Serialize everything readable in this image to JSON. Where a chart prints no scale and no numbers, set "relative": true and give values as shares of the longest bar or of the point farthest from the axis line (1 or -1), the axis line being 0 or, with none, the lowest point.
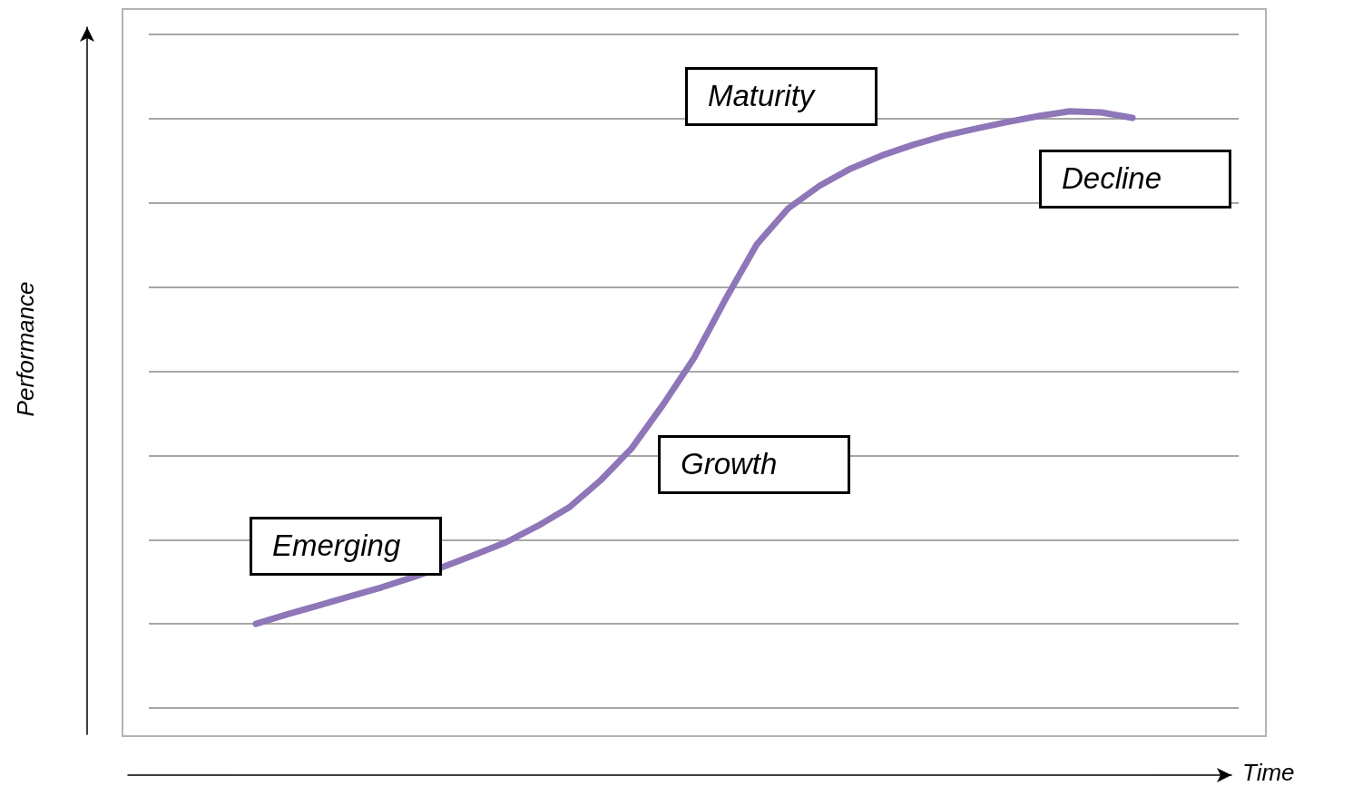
{
  "chart_data": {
    "type": "line",
    "relative": true,
    "xlabel": "Time",
    "grid": true,
    "marker": "none",
    "line_style": "solid",
    "categories": [
      null,
      null,
      null,
      null,
      null,
      null,
      null,
      null,
      null,
      null,
      null,
      null,
      null,
      null,
      null,
      null,
      null,
      null,
      null,
      null,
      null,
      null,
      null,
      null,
      null,
      null,
      null,
      null,
      null
    ],
    "series": [
      {
        "color": "#8e76b8",
        "values": [
          0.141,
          0.157,
          0.172,
          0.187,
          0.202,
          0.219,
          0.237,
          0.257,
          0.278,
          0.305,
          0.336,
          0.381,
          0.435,
          0.508,
          0.587,
          0.685,
          0.777,
          0.837,
          0.875,
          0.904,
          0.926,
          0.944,
          0.959,
          0.971,
          0.982,
          0.992,
          1,
          0.998,
          0.989
        ]
      }
    ],
    "annotations": [
      "Emerging",
      "Growth",
      "Maturity",
      "Decline",
      "Performance"
    ]
  }
}
